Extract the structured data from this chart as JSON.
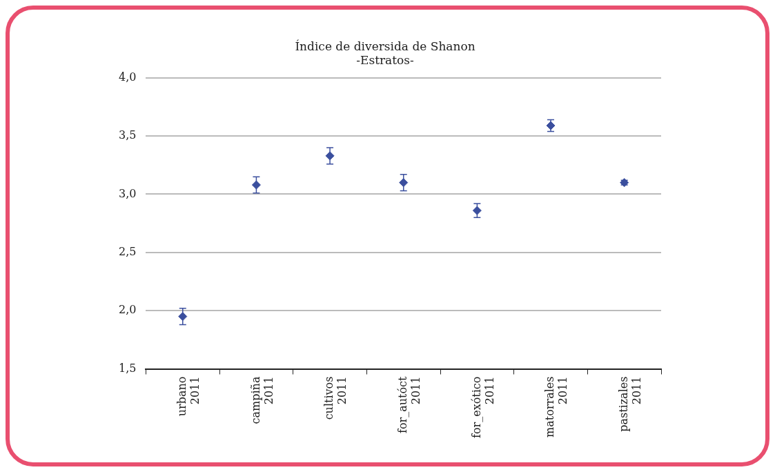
{
  "chart_data": {
    "type": "scatter",
    "title": [
      "Índice de diversida de Shanon",
      "-Estratos-"
    ],
    "categories": [
      "urbano 2011",
      "campiña 2011",
      "cultivos 2011",
      "for_autóct 2011",
      "for_exótico 2011",
      "matorrales 2011",
      "pastizales 2011"
    ],
    "series": [
      {
        "color": "#3b4f9e",
        "values": [
          1.95,
          3.08,
          3.33,
          3.1,
          2.86,
          3.59,
          3.1
        ],
        "errors": [
          0.07,
          0.07,
          0.07,
          0.07,
          0.06,
          0.05,
          0.02
        ]
      }
    ],
    "ylim": [
      1.5,
      4.0
    ],
    "yticks": [
      {
        "value": 1.5,
        "label": "1,5"
      },
      {
        "value": 2.0,
        "label": "2,0"
      },
      {
        "value": 2.5,
        "label": "2,5"
      },
      {
        "value": 3.0,
        "label": "3,0"
      },
      {
        "value": 3.5,
        "label": "3,5"
      },
      {
        "value": 4.0,
        "label": "4,0"
      }
    ],
    "grid": "y",
    "legend": false,
    "marker": "diamond"
  }
}
